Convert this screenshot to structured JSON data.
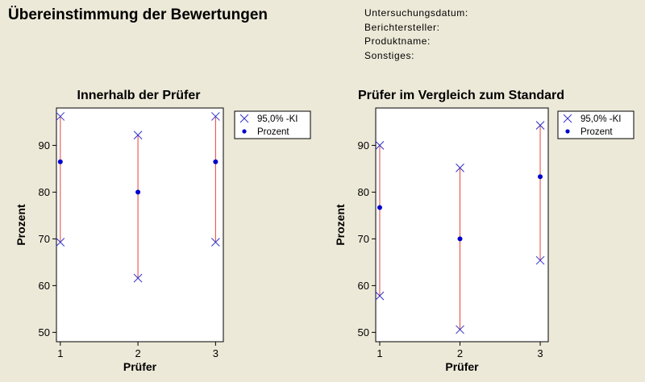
{
  "header": {
    "title": "Übereinstimmung der Bewertungen",
    "meta": [
      "Untersuchungsdatum:",
      "Berichtersteller:",
      "Produktname:",
      "Sonstiges:"
    ]
  },
  "colors": {
    "background": "#ece9d8",
    "plot_bg": "#ffffff",
    "interval_line": "#e8413c",
    "ci_marker": "#3030c8",
    "point": "#0000cc"
  },
  "chart_data": [
    {
      "type": "scatter",
      "title": "Innerhalb der Prüfer",
      "xlabel": "Prüfer",
      "ylabel": "Prozent",
      "x": [
        1,
        2,
        3
      ],
      "xlim": [
        0.95,
        3.1
      ],
      "ylim": [
        48,
        98
      ],
      "yticks": [
        50,
        60,
        70,
        80,
        90
      ],
      "xticks": [
        1,
        2,
        3
      ],
      "series": [
        {
          "name": "95,0% -KI",
          "lower": [
            69.3,
            61.6,
            69.3
          ],
          "upper": [
            96.2,
            92.2,
            96.2
          ]
        },
        {
          "name": "Prozent",
          "values": [
            86.5,
            80.0,
            86.5
          ]
        }
      ],
      "legend": "right"
    },
    {
      "type": "scatter",
      "title": "Prüfer im Vergleich zum Standard",
      "xlabel": "Prüfer",
      "ylabel": "Prozent",
      "x": [
        1,
        2,
        3
      ],
      "xlim": [
        0.95,
        3.1
      ],
      "ylim": [
        48,
        98
      ],
      "yticks": [
        50,
        60,
        70,
        80,
        90
      ],
      "xticks": [
        1,
        2,
        3
      ],
      "series": [
        {
          "name": "95,0% -KI",
          "lower": [
            57.8,
            50.6,
            65.4
          ],
          "upper": [
            90.0,
            85.2,
            94.3
          ]
        },
        {
          "name": "Prozent",
          "values": [
            76.7,
            70.0,
            83.3
          ]
        }
      ],
      "legend": "right"
    }
  ]
}
